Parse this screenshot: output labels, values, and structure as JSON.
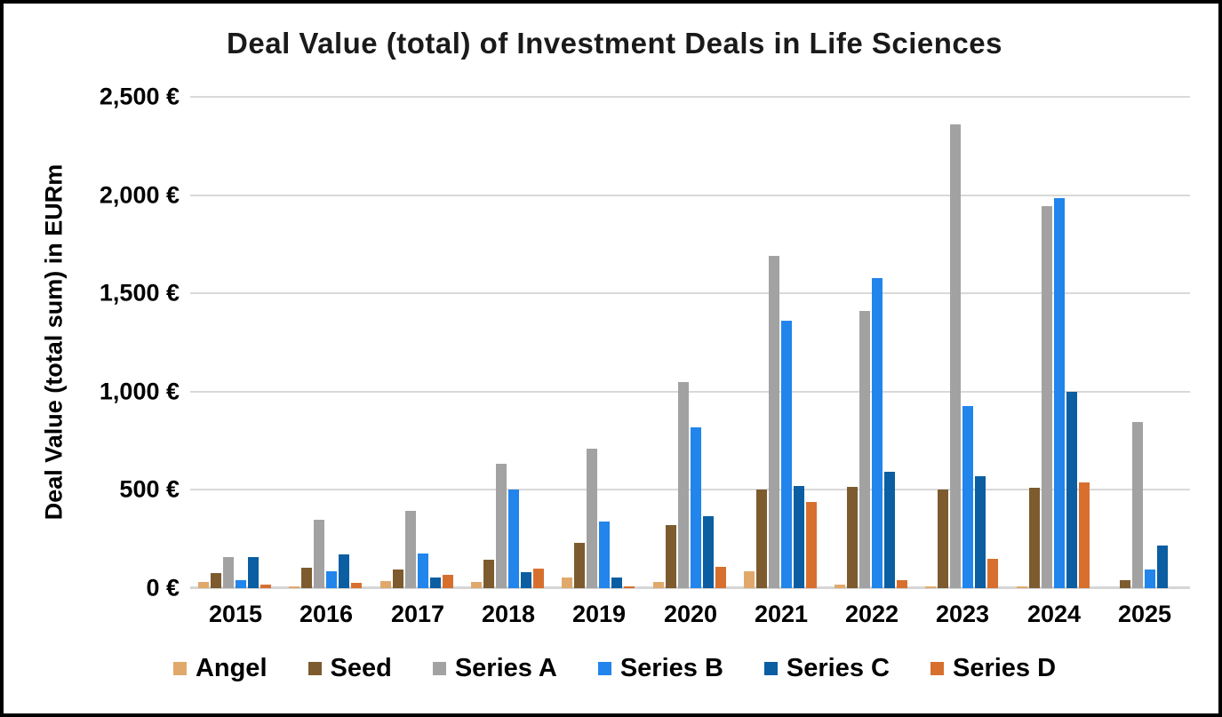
{
  "chart_data": {
    "type": "bar",
    "title": "Deal Value (total) of Investment Deals in Life Sciences",
    "ylabel": "Deal Value (total sum) in EURm",
    "xlabel": "",
    "categories": [
      "2015",
      "2016",
      "2017",
      "2018",
      "2019",
      "2020",
      "2021",
      "2022",
      "2023",
      "2024",
      "2025"
    ],
    "series": [
      {
        "name": "Angel",
        "color": "#E0A96B",
        "values": [
          30,
          10,
          35,
          30,
          55,
          30,
          85,
          20,
          10,
          10,
          0
        ]
      },
      {
        "name": "Seed",
        "color": "#7D5B2E",
        "values": [
          75,
          105,
          95,
          145,
          230,
          320,
          500,
          515,
          500,
          510,
          40
        ]
      },
      {
        "name": "Series A",
        "color": "#A2A2A2",
        "values": [
          160,
          350,
          395,
          635,
          710,
          1050,
          1690,
          1410,
          2360,
          1945,
          845
        ]
      },
      {
        "name": "Series B",
        "color": "#2185EC",
        "values": [
          40,
          85,
          175,
          500,
          340,
          820,
          1360,
          1580,
          925,
          1985,
          95
        ]
      },
      {
        "name": "Series C",
        "color": "#0B5EA2",
        "values": [
          160,
          170,
          55,
          80,
          55,
          365,
          520,
          590,
          570,
          1000,
          215
        ]
      },
      {
        "name": "Series D",
        "color": "#D7702F",
        "values": [
          20,
          25,
          70,
          100,
          10,
          110,
          440,
          40,
          150,
          540,
          0
        ]
      }
    ],
    "ylim": [
      0,
      2500
    ],
    "y_ticks": [
      0,
      500,
      1000,
      1500,
      2000,
      2500
    ],
    "y_tick_labels": [
      "0 €",
      "500 €",
      "1,000 €",
      "1,500 €",
      "2,000 €",
      "2,500 €"
    ],
    "grid": true,
    "gridline_color": "#D9D9D9",
    "legend_position": "bottom"
  }
}
